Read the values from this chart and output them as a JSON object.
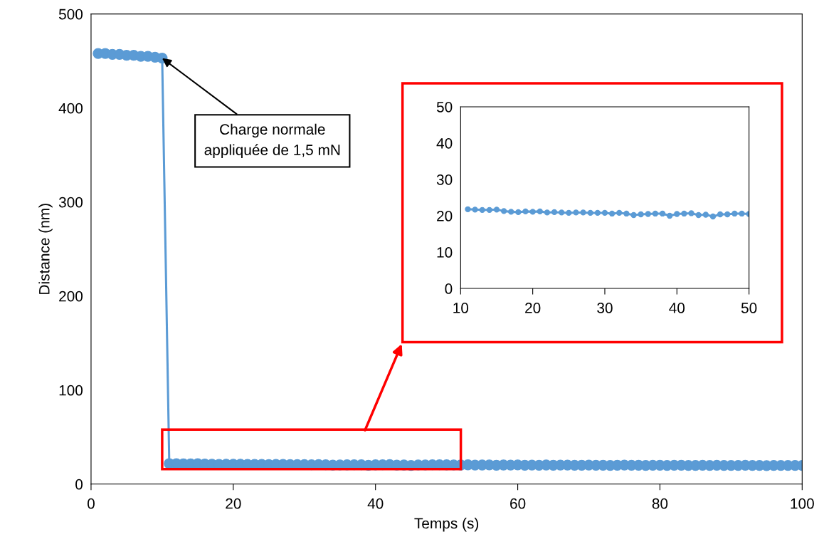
{
  "chart_data": [
    {
      "type": "line",
      "xlabel": "Temps (s)",
      "ylabel": "Distance (nm)",
      "marker": "circle",
      "line_style": "solid",
      "x": [
        1,
        2,
        3,
        4,
        5,
        6,
        7,
        8,
        9,
        10,
        11,
        12,
        13,
        14,
        15,
        16,
        17,
        18,
        19,
        20,
        21,
        22,
        23,
        24,
        25,
        26,
        27,
        28,
        29,
        30,
        31,
        32,
        33,
        34,
        35,
        36,
        37,
        38,
        39,
        40,
        41,
        42,
        43,
        44,
        45,
        46,
        47,
        48,
        49,
        50,
        51,
        52,
        53,
        54,
        55,
        56,
        57,
        58,
        59,
        60,
        61,
        62,
        63,
        64,
        65,
        66,
        67,
        68,
        69,
        70,
        71,
        72,
        73,
        74,
        75,
        76,
        77,
        78,
        79,
        80,
        81,
        82,
        83,
        84,
        85,
        86,
        87,
        88,
        89,
        90,
        91,
        92,
        93,
        94,
        95,
        96,
        97,
        98,
        99,
        100
      ],
      "series": [
        {
          "color": "#5b9bd5",
          "values": [
            458,
            458,
            457,
            457,
            456,
            456,
            455,
            455,
            454,
            453,
            21.8,
            21.7,
            21.6,
            21.6,
            21.7,
            21.3,
            21.1,
            21.0,
            21.2,
            21.1,
            21.2,
            20.9,
            21.0,
            20.9,
            20.8,
            20.9,
            20.9,
            20.8,
            20.8,
            20.8,
            20.6,
            20.8,
            20.6,
            20.2,
            20.4,
            20.5,
            20.6,
            20.6,
            20.0,
            20.5,
            20.6,
            20.7,
            20.2,
            20.3,
            19.8,
            20.4,
            20.4,
            20.6,
            20.6,
            20.5,
            20.4,
            20.3,
            20.5,
            20.2,
            20.3,
            20.4,
            20.1,
            20.3,
            20.2,
            20.4,
            20.1,
            20.2,
            20.0,
            20.3,
            20.1,
            20.2,
            20.2,
            20.0,
            20.1,
            20.2,
            20.0,
            20.1,
            19.9,
            20.1,
            20.2,
            20.0,
            20.1,
            19.9,
            20.0,
            20.1,
            19.9,
            20.0,
            20.1,
            19.8,
            19.9,
            20.0,
            19.8,
            20.0,
            19.9,
            19.8,
            19.9,
            20.0,
            19.8,
            19.9,
            19.7,
            19.9,
            19.8,
            19.8,
            19.9,
            19.8
          ]
        }
      ],
      "xlim": [
        0,
        100
      ],
      "xticks": [
        0,
        20,
        40,
        60,
        80,
        100
      ],
      "ylim": [
        0,
        500
      ],
      "yticks": [
        0,
        100,
        200,
        300,
        400,
        500
      ],
      "annotations": [
        {
          "text": "Charge normale\nappliquée de 1,5 mN",
          "x": 10,
          "y": 453
        }
      ]
    },
    {
      "type": "line",
      "marker": "circle",
      "line_style": "solid",
      "x": [
        11,
        12,
        13,
        14,
        15,
        16,
        17,
        18,
        19,
        20,
        21,
        22,
        23,
        24,
        25,
        26,
        27,
        28,
        29,
        30,
        31,
        32,
        33,
        34,
        35,
        36,
        37,
        38,
        39,
        40,
        41,
        42,
        43,
        44,
        45,
        46,
        47,
        48,
        49,
        50
      ],
      "series": [
        {
          "color": "#5b9bd5",
          "values": [
            21.8,
            21.7,
            21.6,
            21.6,
            21.7,
            21.3,
            21.1,
            21.0,
            21.2,
            21.1,
            21.2,
            20.9,
            21.0,
            20.9,
            20.8,
            20.9,
            20.9,
            20.8,
            20.8,
            20.8,
            20.6,
            20.8,
            20.6,
            20.2,
            20.4,
            20.5,
            20.6,
            20.6,
            20.0,
            20.5,
            20.6,
            20.7,
            20.2,
            20.3,
            19.8,
            20.4,
            20.4,
            20.6,
            20.6,
            20.5
          ]
        }
      ],
      "xlim": [
        10,
        50
      ],
      "xticks": [
        10,
        20,
        30,
        40,
        50
      ],
      "ylim": [
        0,
        50
      ],
      "yticks": [
        0,
        10,
        20,
        30,
        40,
        50
      ]
    }
  ]
}
